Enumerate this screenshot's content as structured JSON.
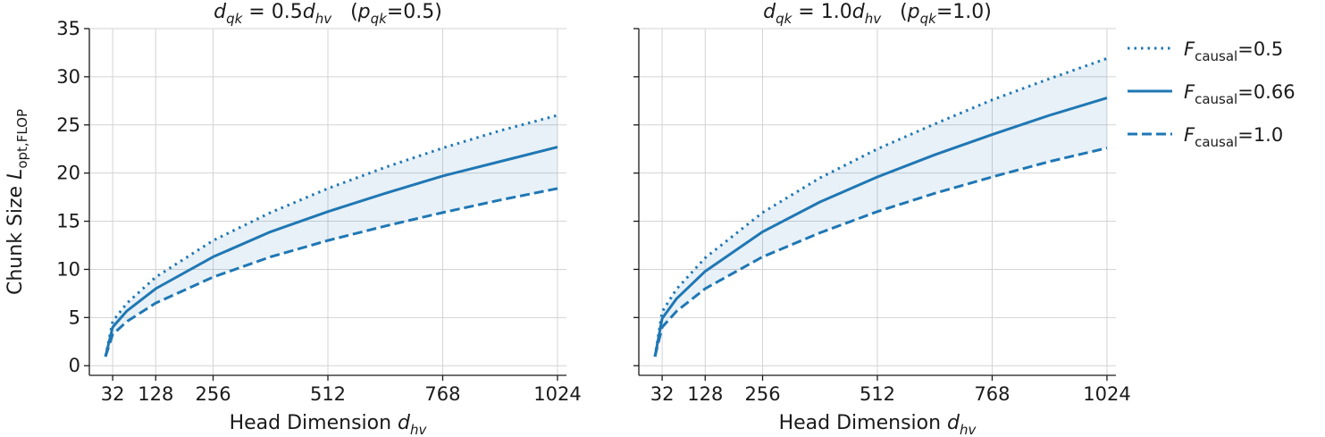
{
  "chart_data": [
    {
      "type": "line",
      "title": "d_qk = 0.5 d_hv   (p_qk=0.5)",
      "title_parts": {
        "lhs": "d",
        "lhs_sub": "qk",
        "eq": " = 0.5",
        "rhs": "d",
        "rhs_sub": "hv",
        "p": "p",
        "p_sub": "qk",
        "p_val": "=0.5"
      },
      "xlabel": "Head Dimension d_hv",
      "xlabel_parts": {
        "text": "Head Dimension ",
        "var": "d",
        "sub": "hv"
      },
      "ylabel": "Chunk Size L_opt,FLOP",
      "ylabel_parts": {
        "text": "Chunk Size ",
        "var": "L",
        "sub": "opt,FLOP"
      },
      "xlim": [
        -20,
        1044
      ],
      "ylim": [
        -1,
        35
      ],
      "xticks": [
        32,
        128,
        256,
        512,
        768,
        1024
      ],
      "yticks": [
        0,
        5,
        10,
        15,
        20,
        25,
        30,
        35
      ],
      "grid": true,
      "series": [
        {
          "name": "F_causal=0.5",
          "style": "dotted",
          "x": [
            16,
            32,
            64,
            128,
            256,
            384,
            512,
            640,
            768,
            896,
            1024
          ],
          "y": [
            0.95,
            4.6,
            6.5,
            9.2,
            13.0,
            15.9,
            18.4,
            20.6,
            22.6,
            24.4,
            26.0
          ]
        },
        {
          "name": "F_causal=0.66",
          "style": "solid",
          "x": [
            16,
            32,
            64,
            128,
            256,
            384,
            512,
            640,
            768,
            896,
            1024
          ],
          "y": [
            0.95,
            4.0,
            5.7,
            8.0,
            11.3,
            13.9,
            16.0,
            17.9,
            19.7,
            21.2,
            22.7
          ]
        },
        {
          "name": "F_causal=1.0",
          "style": "dashed",
          "x": [
            16,
            32,
            64,
            128,
            256,
            384,
            512,
            640,
            768,
            896,
            1024
          ],
          "y": [
            0.95,
            3.25,
            4.6,
            6.5,
            9.2,
            11.3,
            13.0,
            14.5,
            15.9,
            17.2,
            18.4
          ]
        }
      ],
      "shaded_band": {
        "between": [
          "F_causal=0.5",
          "F_causal=1.0"
        ],
        "color": "#1f77b4",
        "alpha": 0.1
      }
    },
    {
      "type": "line",
      "title": "d_qk = 1.0 d_hv   (p_qk=1.0)",
      "title_parts": {
        "lhs": "d",
        "lhs_sub": "qk",
        "eq": " = 1.0",
        "rhs": "d",
        "rhs_sub": "hv",
        "p": "p",
        "p_sub": "qk",
        "p_val": "=1.0"
      },
      "xlabel": "Head Dimension d_hv",
      "xlabel_parts": {
        "text": "Head Dimension ",
        "var": "d",
        "sub": "hv"
      },
      "xlim": [
        -20,
        1044
      ],
      "ylim": [
        -1,
        35
      ],
      "xticks": [
        32,
        128,
        256,
        512,
        768,
        1024
      ],
      "yticks": [
        0,
        5,
        10,
        15,
        20,
        25,
        30,
        35
      ],
      "grid": true,
      "series": [
        {
          "name": "F_causal=0.5",
          "style": "dotted",
          "x": [
            16,
            32,
            64,
            128,
            256,
            384,
            512,
            640,
            768,
            896,
            1024
          ],
          "y": [
            0.95,
            5.6,
            7.95,
            11.2,
            15.9,
            19.5,
            22.5,
            25.1,
            27.6,
            29.8,
            31.9
          ]
        },
        {
          "name": "F_causal=0.66",
          "style": "solid",
          "x": [
            16,
            32,
            64,
            128,
            256,
            384,
            512,
            640,
            768,
            896,
            1024
          ],
          "y": [
            0.95,
            4.9,
            6.95,
            9.8,
            13.9,
            17.0,
            19.6,
            21.9,
            24.0,
            26.0,
            27.8
          ]
        },
        {
          "name": "F_causal=1.0",
          "style": "dashed",
          "x": [
            16,
            32,
            64,
            128,
            256,
            384,
            512,
            640,
            768,
            896,
            1024
          ],
          "y": [
            0.95,
            4.0,
            5.65,
            8.0,
            11.3,
            13.8,
            16.0,
            17.9,
            19.6,
            21.2,
            22.6
          ]
        }
      ],
      "shaded_band": {
        "between": [
          "F_causal=0.5",
          "F_causal=1.0"
        ],
        "color": "#1f77b4",
        "alpha": 0.1
      }
    }
  ],
  "legend": {
    "placement": "right",
    "entries": [
      {
        "label": "F_causal=0.5",
        "var": "F",
        "sub": "causal",
        "val": "=0.5",
        "style": "dotted"
      },
      {
        "label": "F_causal=0.66",
        "var": "F",
        "sub": "causal",
        "val": "=0.66",
        "style": "solid"
      },
      {
        "label": "F_causal=1.0",
        "var": "F",
        "sub": "causal",
        "val": "=1.0",
        "style": "dashed"
      }
    ]
  },
  "colors": {
    "line": "#1f77b4",
    "band": "#1f77b4",
    "grid": "#d3d3d3",
    "axis": "#1a1a1a"
  }
}
